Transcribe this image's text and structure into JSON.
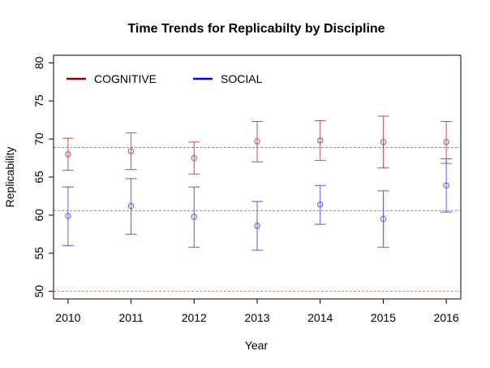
{
  "chart_data": {
    "type": "scatter",
    "title": "Time Trends for Replicabilty by Discipline",
    "xlabel": "Year",
    "ylabel": "Replicability",
    "x": [
      2010,
      2011,
      2012,
      2013,
      2014,
      2015,
      2016
    ],
    "xlim": [
      2009.77,
      2016.23
    ],
    "ylim": [
      49,
      81
    ],
    "y_ticks": [
      50,
      55,
      60,
      65,
      70,
      75,
      80
    ],
    "grid": false,
    "legend_position": "top-left",
    "series": [
      {
        "name": "COGNITIVE",
        "color": "#c0504d",
        "legend_color": "#8b0000",
        "marker": "open-circle",
        "values": [
          68.0,
          68.4,
          67.5,
          69.7,
          69.8,
          69.6,
          69.6
        ],
        "lower": [
          65.9,
          66.0,
          65.4,
          67.0,
          67.2,
          66.2,
          66.8
        ],
        "upper": [
          70.1,
          70.8,
          69.6,
          72.3,
          72.4,
          73.0,
          72.3
        ]
      },
      {
        "name": "SOCIAL",
        "color": "#4f5fe6",
        "legend_color": "#0000ee",
        "marker": "open-circle",
        "values": [
          59.9,
          61.2,
          59.8,
          58.6,
          61.4,
          59.5,
          63.9
        ],
        "lower": [
          56.0,
          57.5,
          55.8,
          55.4,
          58.8,
          55.8,
          60.4
        ],
        "upper": [
          63.7,
          64.8,
          63.7,
          61.8,
          63.9,
          63.2,
          67.4
        ]
      }
    ],
    "reference_lines": [
      {
        "y": 68.9,
        "color": "#e05555",
        "style": "dashed"
      },
      {
        "y": 60.6,
        "color": "#4f5fe6",
        "style": "dashed"
      },
      {
        "y": 50.0,
        "color": "#e05555",
        "style": "dashed"
      }
    ]
  }
}
